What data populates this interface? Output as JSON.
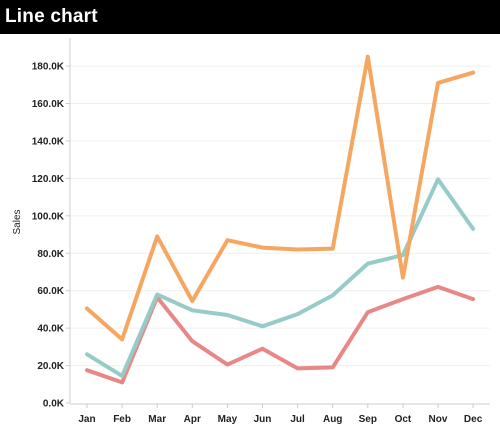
{
  "header": {
    "title": "Line chart"
  },
  "chart_data": {
    "type": "line",
    "title": "Line chart",
    "xlabel": "",
    "ylabel": "Sales",
    "ylim": [
      0,
      195000
    ],
    "grid": true,
    "legend": "none",
    "categories": [
      "Jan",
      "Feb",
      "Mar",
      "Apr",
      "May",
      "Jun",
      "Jul",
      "Aug",
      "Sep",
      "Oct",
      "Nov",
      "Dec"
    ],
    "y_ticks": [
      0,
      20000,
      40000,
      60000,
      80000,
      100000,
      120000,
      140000,
      160000,
      180000
    ],
    "y_tick_labels": [
      "0.0K",
      "20.0K",
      "40.0K",
      "60.0K",
      "80.0K",
      "100.0K",
      "120.0K",
      "140.0K",
      "160.0K",
      "180.0K"
    ],
    "series": [
      {
        "color": "#f5a660",
        "values": [
          50500,
          34000,
          89000,
          54500,
          87000,
          83000,
          82000,
          82500,
          185000,
          67000,
          171000,
          176500
        ]
      },
      {
        "color": "#96cbc7",
        "values": [
          26000,
          14500,
          58000,
          49500,
          47000,
          41000,
          47500,
          57500,
          74500,
          79000,
          119500,
          93000
        ]
      },
      {
        "color": "#e88886",
        "values": [
          17500,
          11000,
          56500,
          33000,
          20500,
          29000,
          18500,
          19000,
          48500,
          55500,
          62000,
          55500
        ]
      }
    ]
  }
}
